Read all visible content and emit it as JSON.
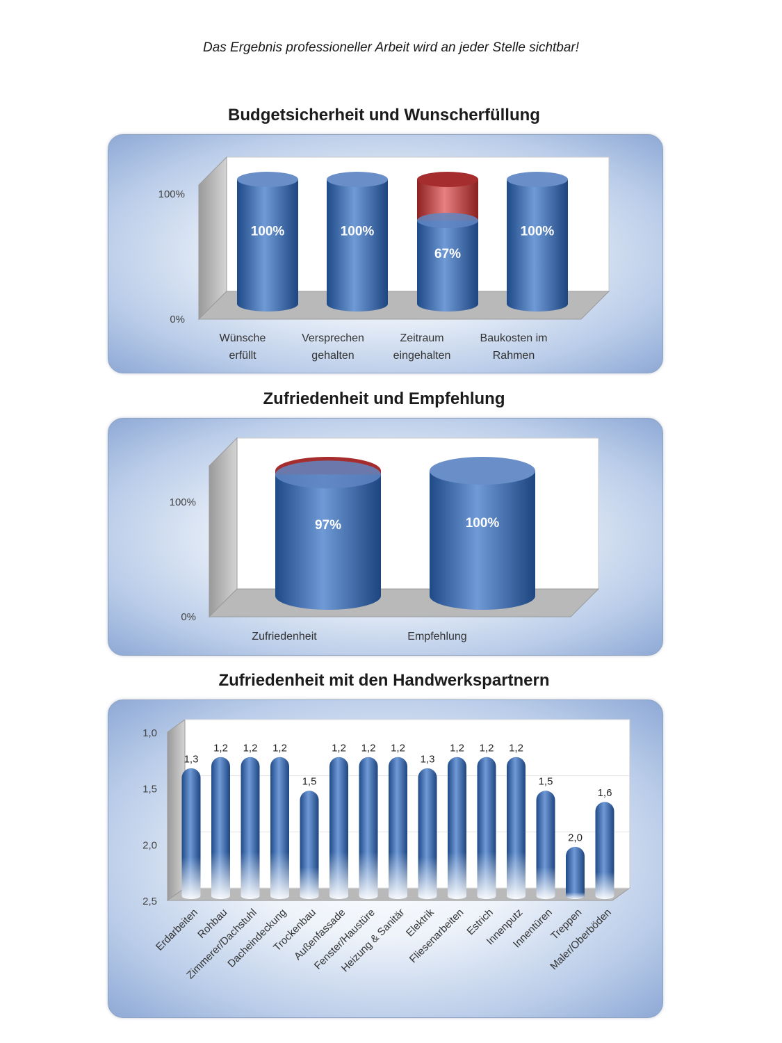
{
  "headline": "Das Ergebnis professioneller Arbeit wird an jeder Stelle sichtbar!",
  "colors": {
    "bar_blue": "#3f6fb0",
    "bar_red": "#b23a3a",
    "bar_red_light": "#e87a7a"
  },
  "chart_data": [
    {
      "type": "bar",
      "title": "Budgetsicherheit und Wunscherfüllung",
      "categories": [
        "Wünsche erfüllt",
        "Versprechen gehalten",
        "Zeitraum eingehalten",
        "Baukosten im Rahmen"
      ],
      "category_lines": [
        [
          "Wünsche",
          "erfüllt"
        ],
        [
          "Versprechen",
          "gehalten"
        ],
        [
          "Zeitraum",
          "eingehalten"
        ],
        [
          "Baukosten im",
          "Rahmen"
        ]
      ],
      "values": [
        100,
        100,
        67,
        100
      ],
      "value_labels": [
        "100%",
        "100%",
        "67%",
        "100%"
      ],
      "ylim": [
        0,
        100
      ],
      "y_ticks": [
        "0%",
        "100%"
      ],
      "style": "3d-cylinder"
    },
    {
      "type": "bar",
      "title": "Zufriedenheit und Empfehlung",
      "categories": [
        "Zufriedenheit",
        "Empfehlung"
      ],
      "category_lines": [
        [
          "Zufriedenheit"
        ],
        [
          "Empfehlung"
        ]
      ],
      "values": [
        97,
        100
      ],
      "value_labels": [
        "97%",
        "100%"
      ],
      "ylim": [
        0,
        100
      ],
      "y_ticks": [
        "0%",
        "100%"
      ],
      "style": "3d-cylinder"
    },
    {
      "type": "bar",
      "title": "Zufriedenheit mit den Handwerkspartnern",
      "categories": [
        "Erdarbeiten",
        "Rohbau",
        "Zimmerer/Dachstuhl",
        "Dacheindeckung",
        "Trockenbau",
        "Außenfassade",
        "Fenster/Haustüre",
        "Heizung & Sanitär",
        "Elektrik",
        "Fliesenarbeiten",
        "Estrich",
        "Innenputz",
        "Innentüren",
        "Treppen",
        "Maler/Oberböden"
      ],
      "values": [
        1.3,
        1.2,
        1.2,
        1.2,
        1.5,
        1.2,
        1.2,
        1.2,
        1.3,
        1.2,
        1.2,
        1.2,
        1.5,
        2.0,
        1.6
      ],
      "value_labels": [
        "1,3",
        "1,2",
        "1,2",
        "1,2",
        "1,5",
        "1,2",
        "1,2",
        "1,2",
        "1,3",
        "1,2",
        "1,2",
        "1,2",
        "1,5",
        "2,0",
        "1,6"
      ],
      "ylim": [
        1.0,
        2.5
      ],
      "y_reversed": true,
      "y_ticks": [
        "1,0",
        "1,5",
        "2,0",
        "2,5"
      ],
      "y_tick_values": [
        1.0,
        1.5,
        2.0,
        2.5
      ],
      "style": "3d-cylinder"
    }
  ]
}
